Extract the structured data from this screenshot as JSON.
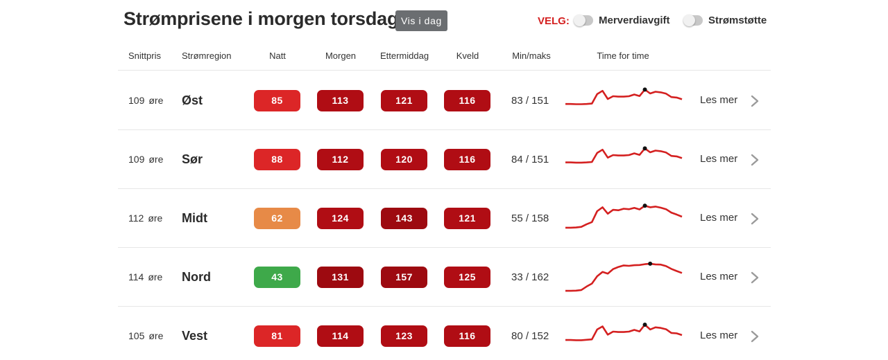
{
  "header": {
    "title": "Strømprisene i morgen torsdag",
    "vis_i_dag_label": "Vis i dag",
    "velg_label": "VELG:",
    "toggles": [
      {
        "label": "Merverdiavgift",
        "on": false
      },
      {
        "label": "Strømstøtte",
        "on": false
      }
    ]
  },
  "columns": [
    "Snittpris",
    "Strømregion",
    "Natt",
    "Morgen",
    "Ettermiddag",
    "Kveld",
    "Min/maks",
    "Time for time"
  ],
  "colors": {
    "red_light": "#dc2627",
    "red_medium": "#b00d14",
    "red_dark": "#9d0a10",
    "orange": "#e78a47",
    "green": "#3ea94a",
    "spark_line": "#d42020",
    "peak_dot": "#111111"
  },
  "rows": [
    {
      "avg": "109",
      "unit": "øre",
      "region": "Øst",
      "natt": {
        "value": "85",
        "color": "#dc2627"
      },
      "morgen": {
        "value": "113",
        "color": "#b00d14"
      },
      "ettermiddag": {
        "value": "121",
        "color": "#b00d14"
      },
      "kveld": {
        "value": "116",
        "color": "#b00d14"
      },
      "minmax": "83 / 151",
      "les_mer": "Les mer",
      "hourly": [
        84,
        84,
        83,
        83,
        84,
        86,
        130,
        145,
        107,
        120,
        118,
        118,
        120,
        128,
        121,
        151,
        133,
        141,
        138,
        132,
        116,
        114,
        106
      ]
    },
    {
      "avg": "109",
      "unit": "øre",
      "region": "Sør",
      "natt": {
        "value": "88",
        "color": "#dc2627"
      },
      "morgen": {
        "value": "112",
        "color": "#b00d14"
      },
      "ettermiddag": {
        "value": "120",
        "color": "#b00d14"
      },
      "kveld": {
        "value": "116",
        "color": "#b00d14"
      },
      "minmax": "84 / 151",
      "les_mer": "Les mer",
      "hourly": [
        86,
        86,
        85,
        85,
        86,
        88,
        130,
        145,
        108,
        120,
        118,
        118,
        120,
        128,
        121,
        151,
        133,
        141,
        138,
        132,
        116,
        114,
        106
      ]
    },
    {
      "avg": "112",
      "unit": "øre",
      "region": "Midt",
      "natt": {
        "value": "62",
        "color": "#e78a47"
      },
      "morgen": {
        "value": "124",
        "color": "#b00d14"
      },
      "ettermiddag": {
        "value": "143",
        "color": "#9d0a10"
      },
      "kveld": {
        "value": "121",
        "color": "#b00d14"
      },
      "minmax": "55 / 158",
      "les_mer": "Les mer",
      "hourly": [
        56,
        56,
        57,
        60,
        72,
        82,
        133,
        151,
        121,
        139,
        137,
        144,
        142,
        148,
        141,
        158,
        151,
        154,
        149,
        142,
        126,
        117,
        107
      ]
    },
    {
      "avg": "114",
      "unit": "øre",
      "region": "Nord",
      "natt": {
        "value": "43",
        "color": "#3ea94a"
      },
      "morgen": {
        "value": "131",
        "color": "#9d0a10"
      },
      "ettermiddag": {
        "value": "157",
        "color": "#9d0a10"
      },
      "kveld": {
        "value": "125",
        "color": "#b00d14"
      },
      "minmax": "33 / 162",
      "les_mer": "Les mer",
      "hourly": [
        36,
        36,
        37,
        40,
        56,
        70,
        104,
        124,
        116,
        137,
        147,
        154,
        152,
        155,
        156,
        160,
        162,
        159,
        158,
        151,
        138,
        128,
        119
      ]
    },
    {
      "avg": "105",
      "unit": "øre",
      "region": "Vest",
      "natt": {
        "value": "81",
        "color": "#dc2627"
      },
      "morgen": {
        "value": "114",
        "color": "#b00d14"
      },
      "ettermiddag": {
        "value": "123",
        "color": "#b00d14"
      },
      "kveld": {
        "value": "116",
        "color": "#b00d14"
      },
      "minmax": "80 / 152",
      "les_mer": "Les mer",
      "hourly": [
        81,
        81,
        80,
        80,
        82,
        84,
        130,
        144,
        106,
        120,
        118,
        118,
        120,
        128,
        121,
        152,
        130,
        140,
        137,
        131,
        114,
        112,
        104
      ]
    }
  ]
}
